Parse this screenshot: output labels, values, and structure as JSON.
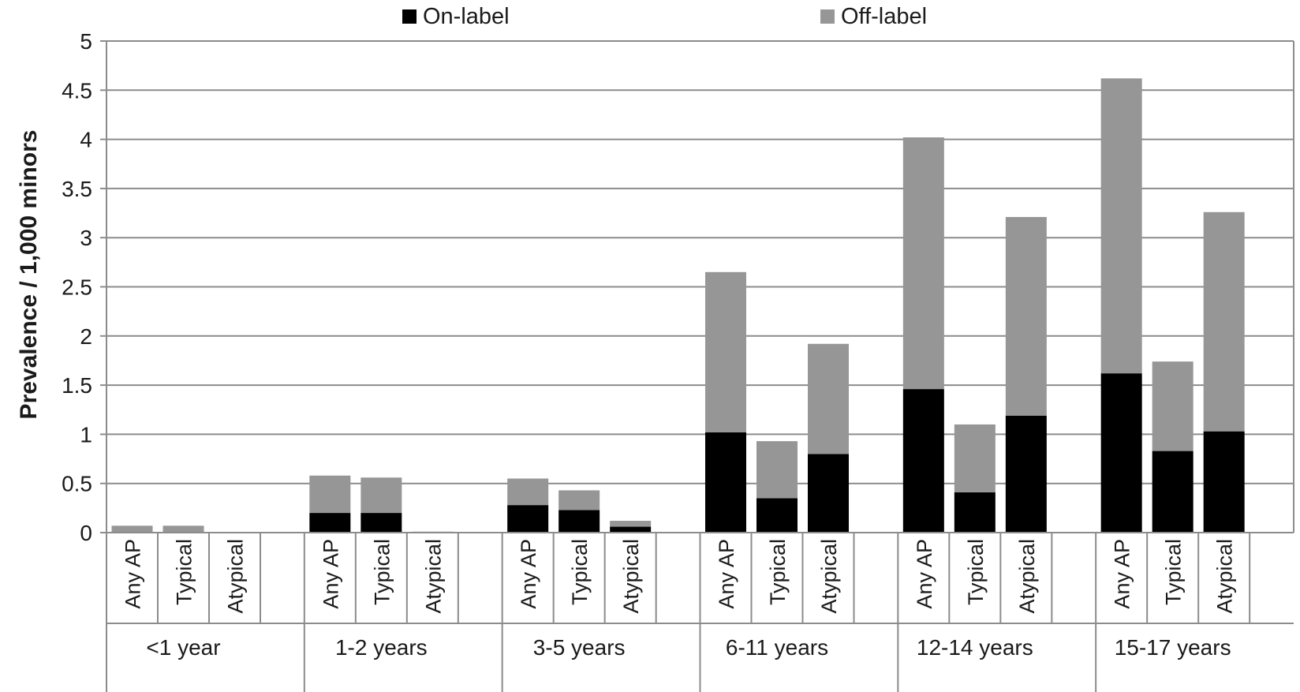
{
  "chart_data": {
    "type": "bar",
    "stacked": true,
    "title": "",
    "xlabel": "",
    "ylabel": "Prevalence / 1,000 minors",
    "ylim": [
      0,
      5
    ],
    "yticks": [
      "0",
      "0.5",
      "1",
      "1.5",
      "2",
      "2.5",
      "3",
      "3.5",
      "4",
      "4.5",
      "5"
    ],
    "grid": true,
    "legend_position": "top",
    "groups": [
      "<1 year",
      "1-2 years",
      "3-5 years",
      "6-11 years",
      "12-14 years",
      "15-17 years"
    ],
    "categories": [
      "Any AP",
      "Typical",
      "Atypical"
    ],
    "series": [
      {
        "name": "On-label",
        "color": "#000000",
        "values": [
          [
            0.0,
            0.0,
            0.0
          ],
          [
            0.2,
            0.2,
            0.0
          ],
          [
            0.28,
            0.23,
            0.06
          ],
          [
            1.02,
            0.35,
            0.8
          ],
          [
            1.46,
            0.41,
            1.19
          ],
          [
            1.62,
            0.83,
            1.03
          ]
        ]
      },
      {
        "name": "Off-label",
        "color": "#969696",
        "values": [
          [
            0.07,
            0.07,
            0.0
          ],
          [
            0.38,
            0.36,
            0.01
          ],
          [
            0.27,
            0.2,
            0.06
          ],
          [
            1.63,
            0.58,
            1.12
          ],
          [
            2.56,
            0.69,
            2.02
          ],
          [
            3.0,
            0.91,
            2.23
          ]
        ]
      }
    ]
  }
}
